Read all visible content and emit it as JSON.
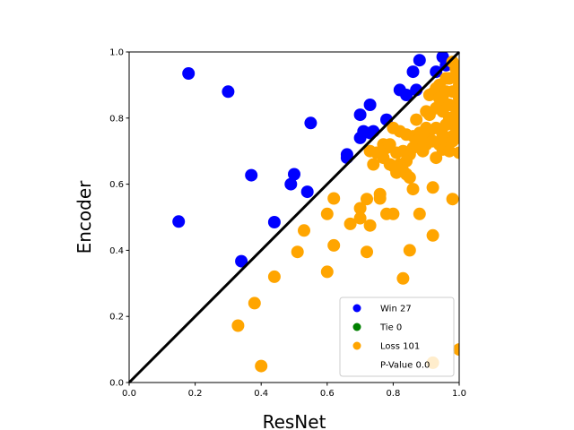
{
  "chart_data": {
    "type": "scatter",
    "xlabel": "ResNet",
    "ylabel": "Encoder",
    "xlim": [
      0.0,
      1.0
    ],
    "ylim": [
      0.0,
      1.0
    ],
    "xticks": [
      "0.0",
      "0.2",
      "0.4",
      "0.6",
      "0.8",
      "1.0"
    ],
    "yticks": [
      "0.0",
      "0.2",
      "0.4",
      "0.6",
      "0.8",
      "1.0"
    ],
    "grid": false,
    "legend_position": "lower-right",
    "diagonal_line": {
      "from": [
        0,
        0
      ],
      "to": [
        1,
        1
      ],
      "color": "#000000"
    },
    "series": [
      {
        "name": "Win 27",
        "color": "#0000ff",
        "points": [
          [
            0.18,
            0.935
          ],
          [
            0.3,
            0.88
          ],
          [
            0.15,
            0.487
          ],
          [
            0.34,
            0.367
          ],
          [
            0.37,
            0.627
          ],
          [
            0.44,
            0.485
          ],
          [
            0.5,
            0.63
          ],
          [
            0.49,
            0.6
          ],
          [
            0.54,
            0.577
          ],
          [
            0.55,
            0.785
          ],
          [
            0.66,
            0.69
          ],
          [
            0.66,
            0.68
          ],
          [
            0.7,
            0.74
          ],
          [
            0.7,
            0.81
          ],
          [
            0.71,
            0.76
          ],
          [
            0.73,
            0.755
          ],
          [
            0.73,
            0.84
          ],
          [
            0.74,
            0.76
          ],
          [
            0.78,
            0.795
          ],
          [
            0.82,
            0.885
          ],
          [
            0.84,
            0.87
          ],
          [
            0.86,
            0.94
          ],
          [
            0.87,
            0.885
          ],
          [
            0.88,
            0.975
          ],
          [
            0.93,
            0.94
          ],
          [
            0.95,
            0.985
          ],
          [
            0.96,
            0.96
          ]
        ]
      },
      {
        "name": "Tie 0",
        "color": "#008000",
        "points": []
      },
      {
        "name": "Loss 101",
        "color": "#ffa500",
        "points": [
          [
            0.33,
            0.172
          ],
          [
            0.38,
            0.24
          ],
          [
            0.4,
            0.05
          ],
          [
            0.44,
            0.32
          ],
          [
            0.51,
            0.395
          ],
          [
            0.53,
            0.46
          ],
          [
            0.6,
            0.335
          ],
          [
            0.6,
            0.51
          ],
          [
            0.62,
            0.557
          ],
          [
            0.62,
            0.415
          ],
          [
            0.67,
            0.48
          ],
          [
            0.7,
            0.527
          ],
          [
            0.7,
            0.497
          ],
          [
            0.72,
            0.395
          ],
          [
            0.72,
            0.555
          ],
          [
            0.73,
            0.475
          ],
          [
            0.73,
            0.7
          ],
          [
            0.74,
            0.66
          ],
          [
            0.75,
            0.695
          ],
          [
            0.76,
            0.57
          ],
          [
            0.76,
            0.557
          ],
          [
            0.77,
            0.68
          ],
          [
            0.77,
            0.72
          ],
          [
            0.78,
            0.71
          ],
          [
            0.78,
            0.51
          ],
          [
            0.79,
            0.66
          ],
          [
            0.8,
            0.51
          ],
          [
            0.8,
            0.655
          ],
          [
            0.8,
            0.77
          ],
          [
            0.81,
            0.635
          ],
          [
            0.81,
            0.695
          ],
          [
            0.82,
            0.76
          ],
          [
            0.83,
            0.64
          ],
          [
            0.83,
            0.7
          ],
          [
            0.83,
            0.315
          ],
          [
            0.84,
            0.75
          ],
          [
            0.84,
            0.63
          ],
          [
            0.85,
            0.4
          ],
          [
            0.85,
            0.62
          ],
          [
            0.86,
            0.585
          ],
          [
            0.86,
            0.745
          ],
          [
            0.87,
            0.795
          ],
          [
            0.88,
            0.51
          ],
          [
            0.88,
            0.755
          ],
          [
            0.89,
            0.7
          ],
          [
            0.9,
            0.82
          ],
          [
            0.9,
            0.72
          ],
          [
            0.91,
            0.87
          ],
          [
            0.91,
            0.76
          ],
          [
            0.92,
            0.59
          ],
          [
            0.92,
            0.445
          ],
          [
            0.92,
            0.875
          ],
          [
            0.92,
            0.06
          ],
          [
            0.93,
            0.68
          ],
          [
            0.93,
            0.89
          ],
          [
            0.94,
            0.9
          ],
          [
            0.94,
            0.72
          ],
          [
            0.95,
            0.855
          ],
          [
            0.95,
            0.705
          ],
          [
            0.95,
            0.75
          ],
          [
            0.96,
            0.92
          ],
          [
            0.96,
            0.73
          ],
          [
            0.97,
            0.84
          ],
          [
            0.97,
            0.8
          ],
          [
            0.98,
            0.88
          ],
          [
            0.98,
            0.97
          ],
          [
            0.98,
            0.745
          ],
          [
            0.98,
            0.555
          ],
          [
            0.99,
            0.93
          ],
          [
            0.99,
            0.83
          ],
          [
            0.99,
            0.77
          ],
          [
            0.99,
            0.81
          ],
          [
            1.0,
            0.695
          ],
          [
            1.0,
            0.1
          ],
          [
            1.0,
            0.9
          ],
          [
            1.0,
            0.78
          ],
          [
            1.0,
            0.86
          ],
          [
            1.0,
            0.74
          ],
          [
            0.99,
            0.95
          ],
          [
            0.97,
            0.92
          ],
          [
            0.96,
            0.88
          ],
          [
            0.94,
            0.86
          ],
          [
            0.93,
            0.83
          ],
          [
            0.91,
            0.81
          ],
          [
            0.9,
            0.77
          ],
          [
            0.89,
            0.75
          ],
          [
            0.87,
            0.73
          ],
          [
            0.86,
            0.71
          ],
          [
            0.85,
            0.69
          ],
          [
            0.84,
            0.67
          ],
          [
            0.82,
            0.66
          ],
          [
            0.81,
            0.65
          ],
          [
            0.79,
            0.72
          ],
          [
            0.97,
            0.7
          ],
          [
            0.98,
            0.73
          ],
          [
            0.99,
            0.79
          ],
          [
            1.0,
            0.83
          ],
          [
            0.96,
            0.78
          ],
          [
            0.95,
            0.82
          ],
          [
            0.93,
            0.77
          ],
          [
            0.92,
            0.73
          ]
        ]
      }
    ],
    "legend": [
      {
        "label": "Win 27",
        "color": "#0000ff",
        "marker": "dot"
      },
      {
        "label": "Tie 0",
        "color": "#008000",
        "marker": "dot"
      },
      {
        "label": "Loss 101",
        "color": "#ffa500",
        "marker": "dot"
      },
      {
        "label": "P-Value 0.0",
        "color": "",
        "marker": "none"
      }
    ]
  }
}
